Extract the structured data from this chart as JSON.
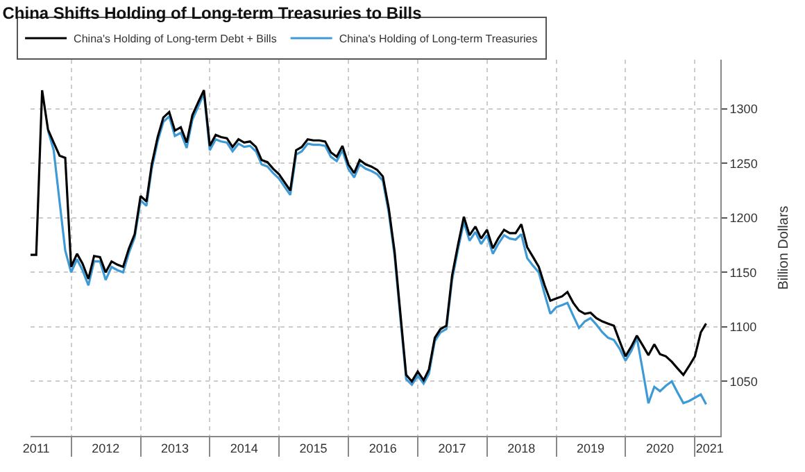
{
  "chart_data": {
    "type": "line",
    "title": "China Shifts Holding of Long-term Treasuries to Bills",
    "ylabel": "Billion Dollars",
    "x": [
      "2011-06",
      "2011-07",
      "2011-08",
      "2011-09",
      "2011-10",
      "2011-11",
      "2011-12",
      "2012-01",
      "2012-02",
      "2012-03",
      "2012-04",
      "2012-05",
      "2012-06",
      "2012-07",
      "2012-08",
      "2012-09",
      "2012-10",
      "2012-11",
      "2012-12",
      "2013-01",
      "2013-02",
      "2013-03",
      "2013-04",
      "2013-05",
      "2013-06",
      "2013-07",
      "2013-08",
      "2013-09",
      "2013-10",
      "2013-11",
      "2013-12",
      "2014-01",
      "2014-02",
      "2014-03",
      "2014-04",
      "2014-05",
      "2014-06",
      "2014-07",
      "2014-08",
      "2014-09",
      "2014-10",
      "2014-11",
      "2014-12",
      "2015-01",
      "2015-02",
      "2015-03",
      "2015-04",
      "2015-05",
      "2015-06",
      "2015-07",
      "2015-08",
      "2015-09",
      "2015-10",
      "2015-11",
      "2015-12",
      "2016-01",
      "2016-02",
      "2016-03",
      "2016-04",
      "2016-05",
      "2016-06",
      "2016-07",
      "2016-08",
      "2016-09",
      "2016-10",
      "2016-11",
      "2016-12",
      "2017-01",
      "2017-02",
      "2017-03",
      "2017-04",
      "2017-05",
      "2017-06",
      "2017-07",
      "2017-08",
      "2017-09",
      "2017-10",
      "2017-11",
      "2017-12",
      "2018-01",
      "2018-02",
      "2018-03",
      "2018-04",
      "2018-05",
      "2018-06",
      "2018-07",
      "2018-08",
      "2018-09",
      "2018-10",
      "2018-11",
      "2018-12",
      "2019-01",
      "2019-02",
      "2019-03",
      "2019-04",
      "2019-05",
      "2019-06",
      "2019-07",
      "2019-08",
      "2019-09",
      "2019-10",
      "2019-11",
      "2019-12",
      "2020-01",
      "2020-02",
      "2020-03",
      "2020-04",
      "2020-05",
      "2020-06",
      "2020-07",
      "2020-08",
      "2020-09",
      "2020-10",
      "2020-11",
      "2020-12",
      "2021-01",
      "2021-02",
      "2021-03"
    ],
    "series": [
      {
        "name": "China's Holding of Long-term Debt + Bills",
        "color": "#000000",
        "values": [
          1166,
          1166,
          1317,
          1281,
          1269,
          1257,
          1255,
          1155,
          1167,
          1158,
          1144,
          1165,
          1164,
          1150,
          1160,
          1157,
          1155,
          1172,
          1185,
          1220,
          1215,
          1249,
          1274,
          1292,
          1297,
          1280,
          1283,
          1269,
          1294,
          1306,
          1317,
          1266,
          1276,
          1274,
          1273,
          1265,
          1272,
          1269,
          1270,
          1265,
          1253,
          1251,
          1245,
          1240,
          1232,
          1225,
          1262,
          1265,
          1272,
          1271,
          1271,
          1270,
          1260,
          1256,
          1266,
          1249,
          1241,
          1253,
          1249,
          1247,
          1244,
          1238,
          1209,
          1169,
          1113,
          1056,
          1050,
          1059,
          1051,
          1061,
          1090,
          1098,
          1101,
          1147,
          1175,
          1201,
          1184,
          1192,
          1181,
          1189,
          1172,
          1181,
          1189,
          1186,
          1186,
          1194,
          1173,
          1164,
          1155,
          1138,
          1124,
          1126,
          1128,
          1132,
          1122,
          1115,
          1112,
          1113,
          1108,
          1105,
          1103,
          1101,
          1087,
          1073,
          1082,
          1092,
          1083,
          1074,
          1084,
          1075,
          1073,
          1068,
          1062,
          1056,
          1064,
          1073,
          1095,
          1103
        ]
      },
      {
        "name": "China's Holding of Long-term Treasuries",
        "color": "#3d9ad6",
        "values": [
          null,
          null,
          null,
          1280,
          1262,
          1215,
          1170,
          1150,
          1162,
          1152,
          1138,
          1160,
          1160,
          1143,
          1155,
          1152,
          1150,
          1168,
          1182,
          1216,
          1211,
          1245,
          1270,
          1288,
          1293,
          1275,
          1278,
          1264,
          1290,
          1302,
          1314,
          1262,
          1272,
          1270,
          1269,
          1261,
          1268,
          1265,
          1266,
          1261,
          1249,
          1247,
          1241,
          1236,
          1228,
          1221,
          1258,
          1261,
          1268,
          1267,
          1267,
          1266,
          1256,
          1252,
          1262,
          1245,
          1237,
          1249,
          1245,
          1243,
          1240,
          1234,
          1205,
          1165,
          1109,
          1052,
          1047,
          1055,
          1048,
          1057,
          1087,
          1095,
          1098,
          1143,
          1171,
          1196,
          1179,
          1187,
          1176,
          1184,
          1167,
          1176,
          1184,
          1181,
          1180,
          1185,
          1163,
          1156,
          1150,
          1130,
          1112,
          1118,
          1120,
          1122,
          1110,
          1099,
          1105,
          1108,
          1102,
          1095,
          1090,
          1088,
          1080,
          1069,
          1078,
          1090,
          1060,
          1030,
          1045,
          1041,
          1046,
          1050,
          1040,
          1030,
          1032,
          1035,
          1038,
          1029
        ]
      }
    ],
    "xlim": [
      "2011-06-01",
      "2021-05-15"
    ],
    "xticks": [
      {
        "value": "2011-07-01",
        "label": "2011"
      },
      {
        "value": "2012-07-01",
        "label": "2012"
      },
      {
        "value": "2013-07-01",
        "label": "2013"
      },
      {
        "value": "2014-07-01",
        "label": "2014"
      },
      {
        "value": "2015-07-01",
        "label": "2015"
      },
      {
        "value": "2016-07-01",
        "label": "2016"
      },
      {
        "value": "2017-07-01",
        "label": "2017"
      },
      {
        "value": "2018-07-01",
        "label": "2018"
      },
      {
        "value": "2019-07-01",
        "label": "2019"
      },
      {
        "value": "2020-07-01",
        "label": "2020"
      },
      {
        "value": "2021-03-20",
        "label": "2021"
      },
      {
        "value": "2012-01-01",
        "label": null
      },
      {
        "value": "2013-01-01",
        "label": null
      },
      {
        "value": "2014-01-01",
        "label": null
      },
      {
        "value": "2015-01-01",
        "label": null
      },
      {
        "value": "2016-01-01",
        "label": null
      },
      {
        "value": "2017-01-01",
        "label": null
      },
      {
        "value": "2018-01-01",
        "label": null
      },
      {
        "value": "2019-01-01",
        "label": null
      },
      {
        "value": "2020-01-01",
        "label": null
      },
      {
        "value": "2021-01-01",
        "label": null
      }
    ],
    "ylim": [
      1000,
      1345
    ],
    "yticks": [
      1050,
      1100,
      1150,
      1200,
      1250,
      1300
    ],
    "grid": true,
    "legend": "top left",
    "line_style": "solid",
    "marker": "none"
  }
}
